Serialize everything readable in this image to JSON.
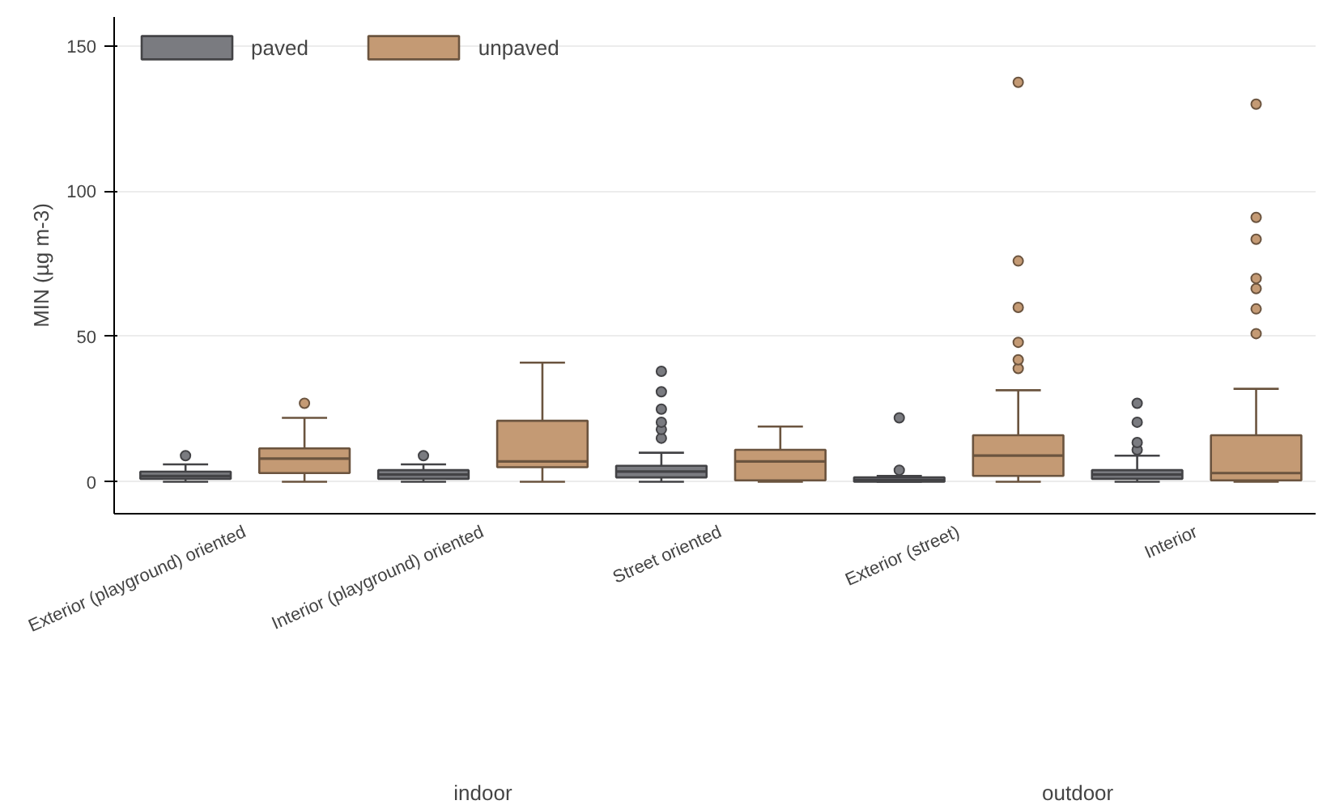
{
  "chart_data": {
    "type": "box",
    "ylabel": "MIN (µg m-3)",
    "categories": [
      "Exterior (playground) oriented",
      "Interior (playground) oriented",
      "Street oriented",
      "Exterior (street)",
      "Interior"
    ],
    "annotations": [
      "indoor",
      "outdoor"
    ],
    "ylim": [
      -11,
      160
    ],
    "yticks": [
      0,
      50,
      100,
      150
    ],
    "grid": "y",
    "legend": "top left",
    "series": [
      {
        "name": "paved",
        "color": "#7a7b80",
        "boxes": [
          {
            "low": 0,
            "q1": 1,
            "median": 2,
            "q3": 3.5,
            "high": 6,
            "outliers": [
              9
            ]
          },
          {
            "low": 0,
            "q1": 1,
            "median": 2.5,
            "q3": 4,
            "high": 6,
            "outliers": [
              9
            ]
          },
          {
            "low": 0,
            "q1": 1.5,
            "median": 3.5,
            "q3": 5.5,
            "high": 10,
            "outliers": [
              15,
              18,
              20.5,
              25,
              31,
              38
            ]
          },
          {
            "low": 0,
            "q1": 0,
            "median": 0.5,
            "q3": 1.5,
            "high": 2,
            "outliers": [
              4,
              22
            ]
          },
          {
            "low": 0,
            "q1": 1,
            "median": 2.5,
            "q3": 4,
            "high": 9,
            "outliers": [
              11,
              13.5,
              20.5,
              27
            ]
          }
        ]
      },
      {
        "name": "unpaved",
        "color": "#c49a74",
        "boxes": [
          {
            "low": 0,
            "q1": 3,
            "median": 8,
            "q3": 11.5,
            "high": 22,
            "outliers": [
              27
            ]
          },
          {
            "low": 0,
            "q1": 5,
            "median": 7,
            "q3": 21,
            "high": 41
          },
          {
            "low": 0,
            "q1": 0.5,
            "median": 7,
            "q3": 11,
            "high": 19
          },
          {
            "low": 0,
            "q1": 2,
            "median": 9,
            "q3": 16,
            "high": 31.5,
            "outliers": [
              39,
              42,
              48,
              60,
              76,
              137.5
            ]
          },
          {
            "low": 0,
            "q1": 0.5,
            "median": 3,
            "q3": 16,
            "high": 32,
            "outliers": [
              51,
              59.5,
              66.5,
              70,
              83.5,
              91,
              130
            ]
          }
        ]
      }
    ]
  }
}
